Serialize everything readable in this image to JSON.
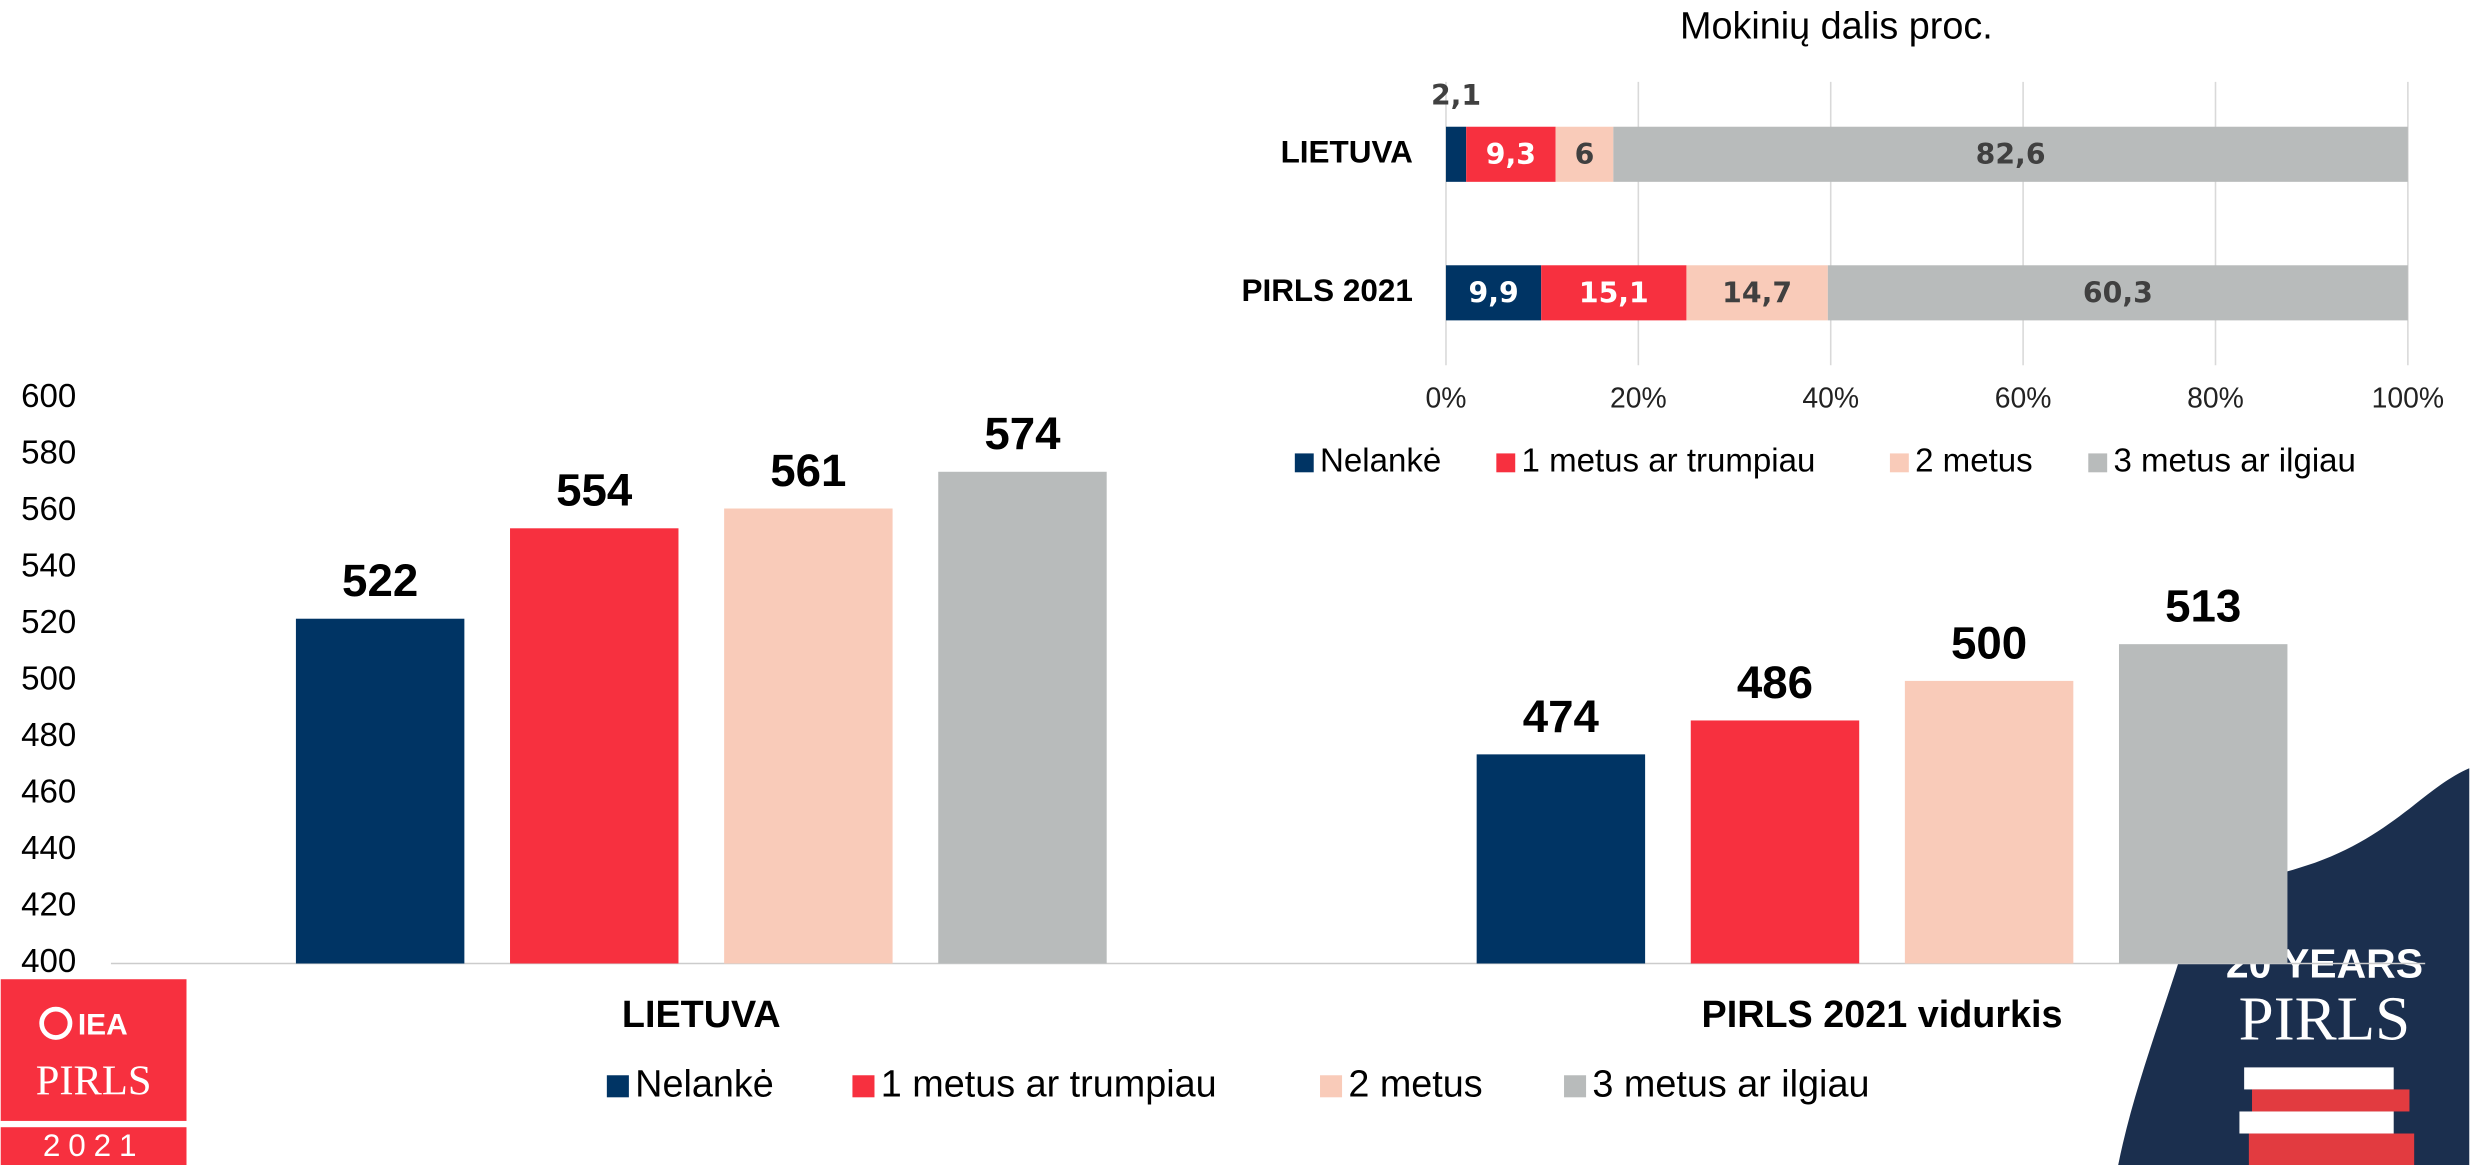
{
  "chart_data": [
    {
      "type": "bar",
      "categories": [
        "LIETUVA",
        "PIRLS 2021 vidurkis"
      ],
      "series": [
        {
          "name": "Nelankė",
          "color": "#003464",
          "values": [
            522,
            474
          ]
        },
        {
          "name": "1 metus ar trumpiau",
          "color": "#f7303f",
          "values": [
            554,
            486
          ]
        },
        {
          "name": "2 metus",
          "color": "#f9cbb9",
          "values": [
            561,
            500
          ]
        },
        {
          "name": "3 metus ar ilgiau",
          "color": "#b8bbbb",
          "values": [
            574,
            513
          ]
        }
      ],
      "ylim": [
        400,
        600
      ],
      "yticks": [
        400,
        420,
        440,
        460,
        480,
        500,
        520,
        540,
        560,
        580,
        600
      ],
      "grid": false,
      "legend": "bottom"
    },
    {
      "type": "barh",
      "title": "Mokinių dalis proc.",
      "categories": [
        "LIETUVA",
        "PIRLS 2021"
      ],
      "series": [
        {
          "name": "Nelankė",
          "color": "#003464",
          "values": [
            2.1,
            9.9
          ],
          "value_labels": [
            "2,1",
            "9,9"
          ]
        },
        {
          "name": "1 metus ar trumpiau",
          "color": "#f7303f",
          "values": [
            9.3,
            15.1
          ],
          "value_labels": [
            "9,3",
            "15,1"
          ]
        },
        {
          "name": "2 metus",
          "color": "#f9cbb9",
          "values": [
            6,
            14.7
          ],
          "value_labels": [
            "6",
            "14,7"
          ]
        },
        {
          "name": "3 metus ar ilgiau",
          "color": "#b8bbbb",
          "values": [
            82.6,
            60.3
          ],
          "value_labels": [
            "82,6",
            "60,3"
          ]
        }
      ],
      "xlim": [
        0,
        100
      ],
      "xticks": [
        {
          "value": 0,
          "label": "0%"
        },
        {
          "value": 20,
          "label": "20%"
        },
        {
          "value": 40,
          "label": "40%"
        },
        {
          "value": 60,
          "label": "60%"
        },
        {
          "value": 80,
          "label": "80%"
        },
        {
          "value": 100,
          "label": "100%"
        }
      ],
      "stacked": true,
      "grid": true,
      "legend": "bottom"
    }
  ],
  "branding": {
    "left": [
      "IEA",
      "PIRLS",
      "2021"
    ],
    "right": [
      "20 YEARS",
      "PIRLS"
    ]
  }
}
